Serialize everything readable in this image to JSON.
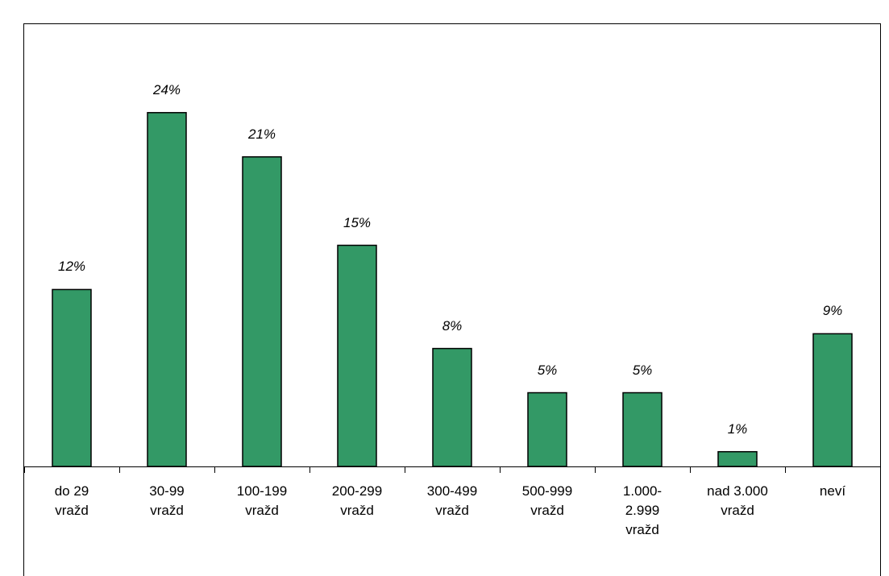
{
  "chart_data": {
    "type": "bar",
    "categories": [
      "do 29\nvražd",
      "30-99\nvražd",
      "100-199\nvražd",
      "200-299\nvražd",
      "300-499\nvražd",
      "500-999\nvražd",
      "1.000-\n2.999\nvražd",
      "nad 3.000\nvražd",
      "neví"
    ],
    "values": [
      12,
      24,
      21,
      15,
      8,
      5,
      5,
      1,
      9
    ],
    "value_labels": [
      "12%",
      "24%",
      "21%",
      "15%",
      "8%",
      "5%",
      "5%",
      "1%",
      "9%"
    ],
    "color": "#339966"
  }
}
